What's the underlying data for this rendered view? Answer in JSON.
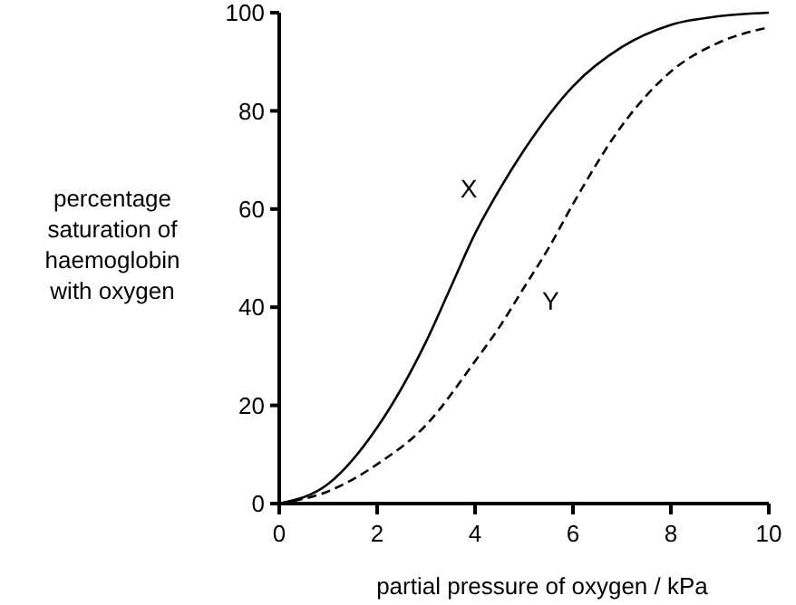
{
  "chart_data": {
    "type": "line",
    "xlabel": "partial pressure of oxygen / kPa",
    "ylabel": "percentage saturation of haemoglobin with oxygen",
    "xlim": [
      0,
      10
    ],
    "ylim": [
      0,
      100
    ],
    "xticks": [
      0,
      2,
      4,
      6,
      8,
      10
    ],
    "yticks": [
      0,
      20,
      40,
      60,
      80,
      100
    ],
    "grid": false,
    "marker": "none",
    "series": [
      {
        "name": "X",
        "color": "#000000",
        "line_style": "solid",
        "x": [
          0,
          1,
          2,
          3,
          3.5,
          4,
          4.5,
          5,
          6,
          7,
          8,
          9,
          10
        ],
        "values": [
          0,
          4,
          15.5,
          33,
          44,
          55,
          64,
          72,
          85,
          93,
          97.5,
          99.3,
          100
        ]
      },
      {
        "name": "Y",
        "color": "#000000",
        "line_style": "dashed",
        "x": [
          0,
          1,
          2,
          3,
          4,
          4.5,
          5,
          5.5,
          6,
          7,
          8,
          9,
          10
        ],
        "values": [
          0,
          2.5,
          8,
          16,
          29,
          36,
          44,
          52,
          61,
          77,
          88,
          94,
          97
        ]
      }
    ]
  }
}
